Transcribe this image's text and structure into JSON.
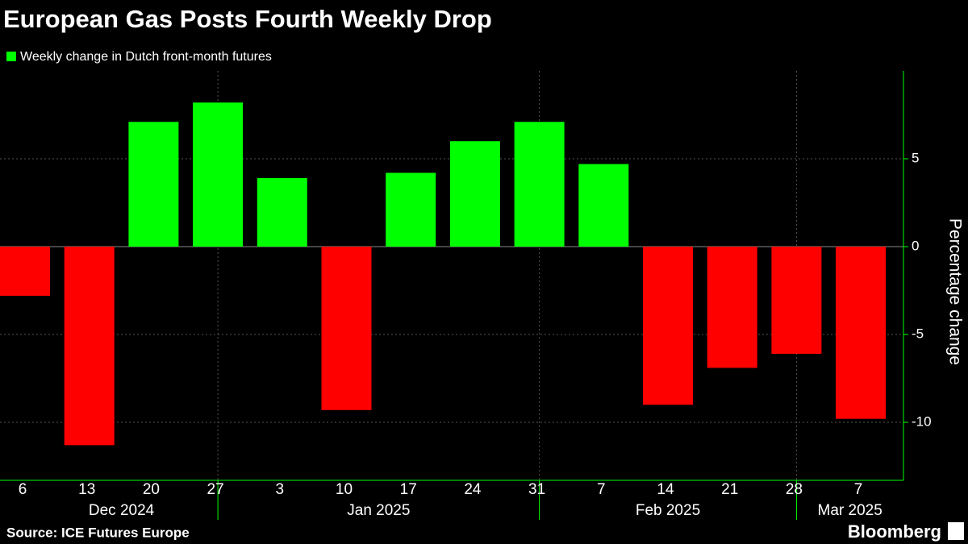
{
  "chart_data": {
    "type": "bar",
    "title": "European Gas Posts Fourth Weekly Drop",
    "legend_label": "Weekly change in Dutch front-month futures",
    "legend_color": "#00ff00",
    "categories": [
      "6",
      "13",
      "20",
      "27",
      "3",
      "10",
      "17",
      "24",
      "31",
      "7",
      "14",
      "21",
      "28",
      "7"
    ],
    "x_group_labels": [
      "Dec 2024",
      "Jan 2025",
      "Feb 2025",
      "Mar 2025"
    ],
    "values": [
      -2.8,
      -11.3,
      7.1,
      8.2,
      3.9,
      -9.3,
      4.2,
      6.0,
      7.1,
      4.7,
      -9.0,
      -6.9,
      -6.1,
      -9.8
    ],
    "positive_color": "#00ff00",
    "negative_color": "#ff0000",
    "ylim": [
      -13.3,
      10
    ],
    "yticks": [
      -10,
      -5,
      0,
      5
    ],
    "y_axis_label": "Percentage change",
    "y_axis_side": "right",
    "grid": true,
    "source": "Source: ICE Futures Europe",
    "brand": "Bloomberg"
  }
}
